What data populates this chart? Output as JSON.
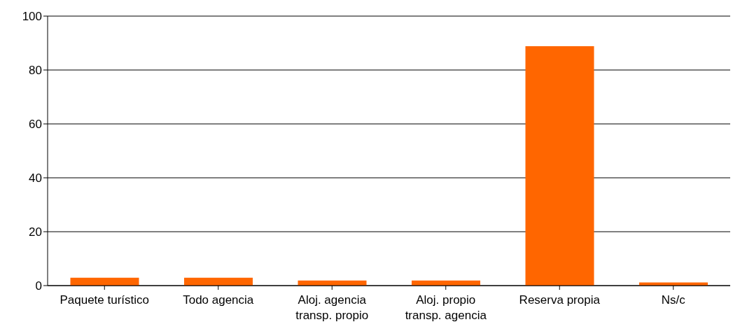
{
  "chart_data": {
    "type": "bar",
    "categories": [
      "Paquete turístico",
      "Todo agencia",
      "Aloj. agencia transp. propio",
      "Aloj. propio transp. agencia",
      "Reserva propia",
      "Ns/c"
    ],
    "values": [
      2.9,
      2.9,
      1.9,
      1.9,
      88.8,
      1.2
    ],
    "color": "#ff6600",
    "ylim": [
      0,
      100
    ],
    "yticks": [
      0,
      20,
      40,
      60,
      80,
      100
    ],
    "grid": "y"
  }
}
